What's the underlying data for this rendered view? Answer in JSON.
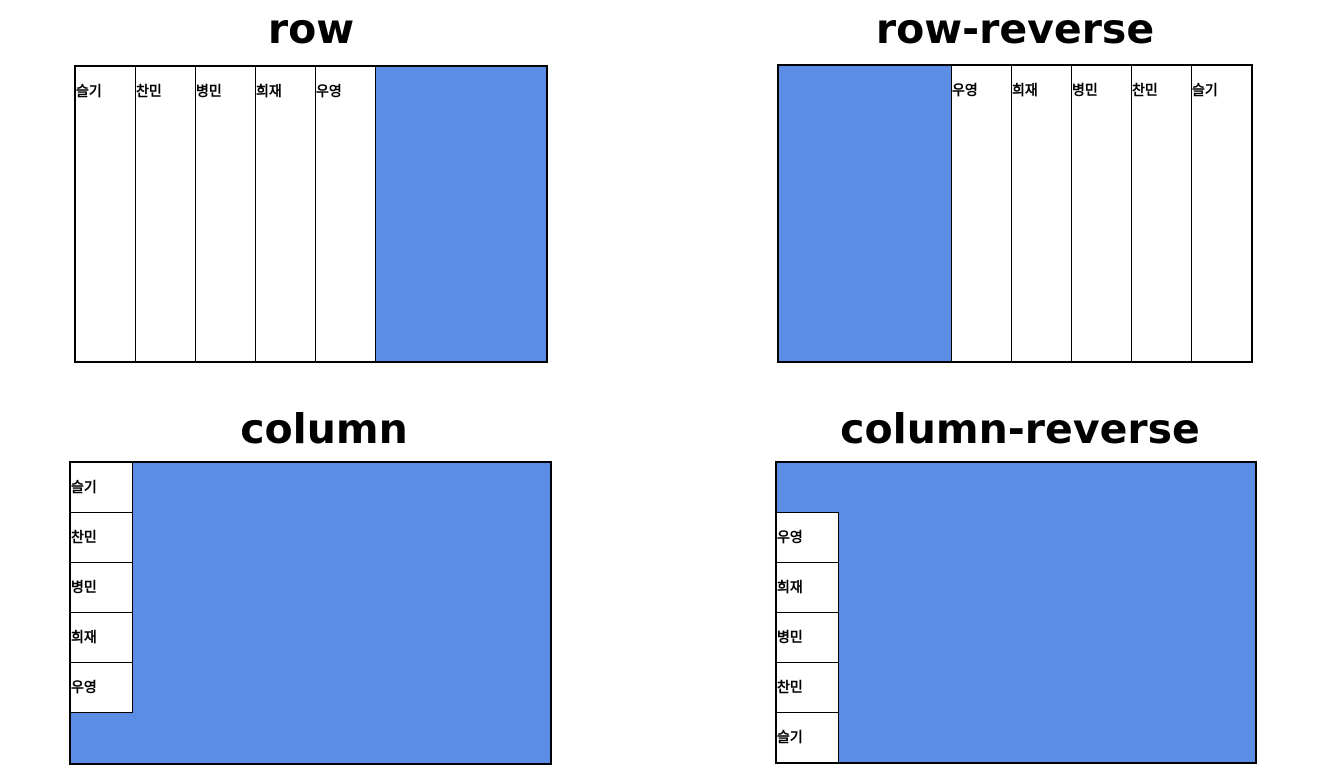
{
  "colors": {
    "container_background": "#5b8de4",
    "item_background": "#ffffff",
    "border": "#000000"
  },
  "items": [
    "슬기",
    "찬민",
    "병민",
    "희재",
    "우영"
  ],
  "panels": [
    {
      "id": "row",
      "title": "row",
      "direction": "row"
    },
    {
      "id": "row-reverse",
      "title": "row-reverse",
      "direction": "row-reverse"
    },
    {
      "id": "column",
      "title": "column",
      "direction": "column"
    },
    {
      "id": "column-reverse",
      "title": "column-reverse",
      "direction": "column-reverse"
    }
  ]
}
